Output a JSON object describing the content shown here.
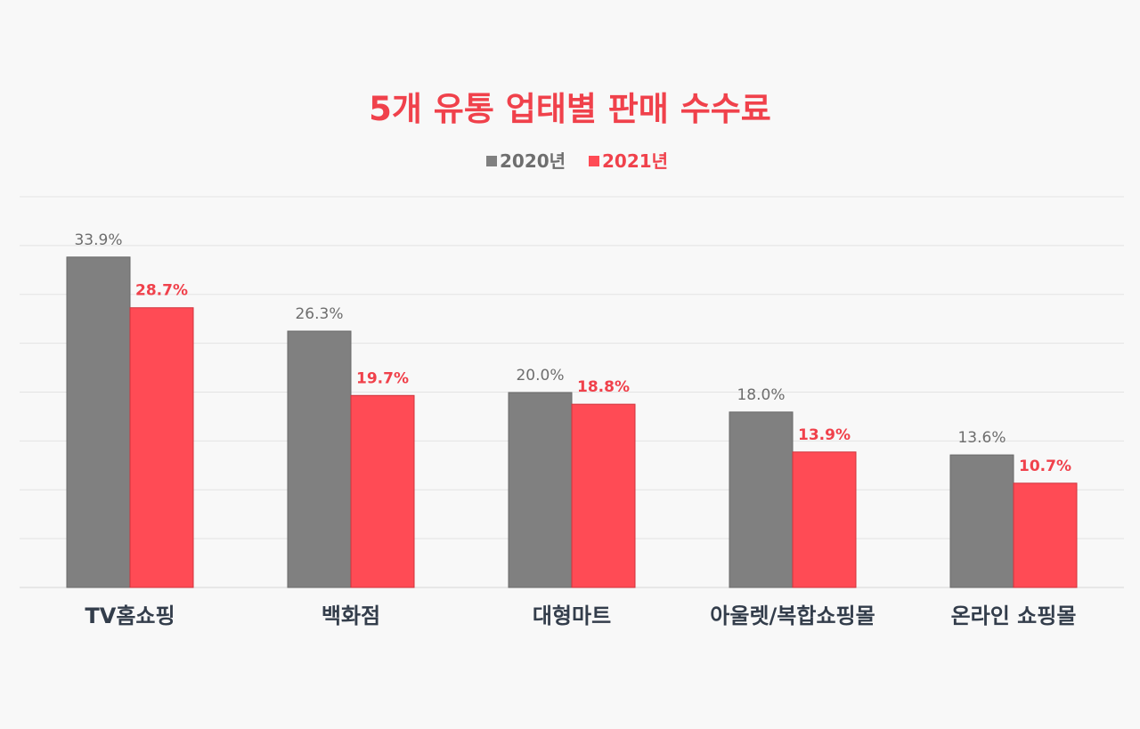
{
  "chart_data": {
    "type": "bar",
    "title": "5개 유통 업태별 판매 수수료",
    "categories": [
      "TV홈쇼핑",
      "백화점",
      "대형마트",
      "아울렛/복합쇼핑몰",
      "온라인 쇼핑몰"
    ],
    "series": [
      {
        "name": "2020년",
        "values": [
          33.9,
          26.3,
          20.0,
          18.0,
          13.6
        ],
        "labels": [
          "33.9%",
          "26.3%",
          "20.0%",
          "18.0%",
          "13.6%"
        ],
        "color": "#808080",
        "label_color": "#6e6e6e"
      },
      {
        "name": "2021년",
        "values": [
          28.7,
          19.7,
          18.8,
          13.9,
          10.7
        ],
        "labels": [
          "28.7%",
          "19.7%",
          "18.8%",
          "13.9%",
          "10.7%"
        ],
        "color": "#ff4b55",
        "label_color": "#f0414b"
      }
    ],
    "ylim": [
      0,
      40
    ],
    "grid": true,
    "legend": "top-center",
    "xlabel": "",
    "ylabel": ""
  },
  "colors": {
    "title": "#f0414b",
    "category_label": "#333d4b",
    "gridline": "#e3e3e3",
    "background": "#f8f8f8"
  }
}
